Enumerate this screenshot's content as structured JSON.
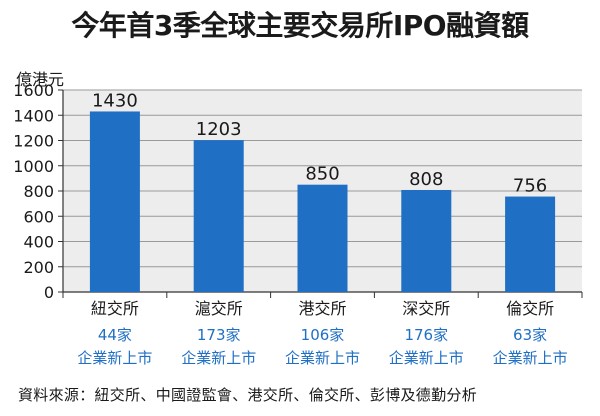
{
  "chart_data": {
    "type": "bar",
    "title": "今年首3季全球主要交易所IPO融資額",
    "ylabel": "億港元",
    "xlabel": "",
    "categories": [
      "紐交所",
      "滬交所",
      "港交所",
      "深交所",
      "倫交所"
    ],
    "values": [
      1430,
      1203,
      850,
      808,
      756
    ],
    "ylim": [
      0,
      1600
    ],
    "yticks": [
      0,
      200,
      400,
      600,
      800,
      1000,
      1200,
      1400,
      1600
    ],
    "data_labels": [
      "1430",
      "1203",
      "850",
      "808",
      "756"
    ],
    "annotations": [
      {
        "count": "44家",
        "text": "企業新上市"
      },
      {
        "count": "173家",
        "text": "企業新上市"
      },
      {
        "count": "106家",
        "text": "企業新上市"
      },
      {
        "count": "176家",
        "text": "企業新上市"
      },
      {
        "count": "63家",
        "text": "企業新上市"
      }
    ],
    "grid": true,
    "bar_color": "#1f6fc5",
    "annotation_color": "#1f6fc5",
    "background_color": "#ededed"
  },
  "source": "資料來源：紐交所、中國證監會、港交所、倫交所、彭博及德勤分析"
}
